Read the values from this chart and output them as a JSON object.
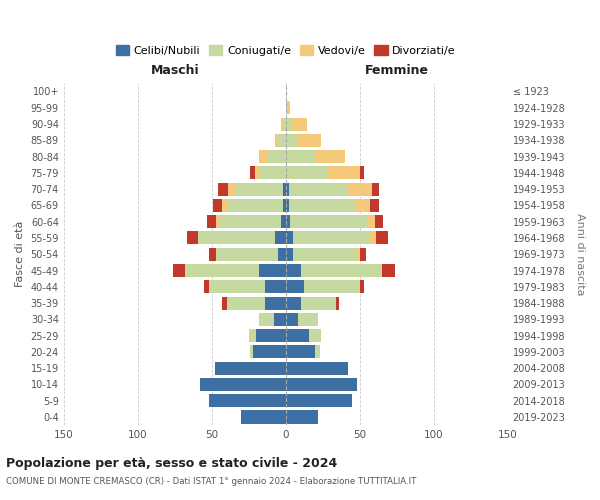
{
  "age_groups": [
    "0-4",
    "5-9",
    "10-14",
    "15-19",
    "20-24",
    "25-29",
    "30-34",
    "35-39",
    "40-44",
    "45-49",
    "50-54",
    "55-59",
    "60-64",
    "65-69",
    "70-74",
    "75-79",
    "80-84",
    "85-89",
    "90-94",
    "95-99",
    "100+"
  ],
  "birth_years": [
    "2019-2023",
    "2014-2018",
    "2009-2013",
    "2004-2008",
    "1999-2003",
    "1994-1998",
    "1989-1993",
    "1984-1988",
    "1979-1983",
    "1974-1978",
    "1969-1973",
    "1964-1968",
    "1959-1963",
    "1954-1958",
    "1949-1953",
    "1944-1948",
    "1939-1943",
    "1934-1938",
    "1929-1933",
    "1924-1928",
    "≤ 1923"
  ],
  "male_celibi": [
    30,
    52,
    58,
    48,
    22,
    20,
    8,
    14,
    14,
    18,
    5,
    7,
    3,
    2,
    2,
    0,
    0,
    0,
    0,
    0,
    0
  ],
  "male_coniugati": [
    0,
    0,
    0,
    0,
    2,
    5,
    10,
    26,
    38,
    50,
    42,
    52,
    42,
    38,
    32,
    18,
    12,
    5,
    2,
    0,
    0
  ],
  "male_vedovi": [
    0,
    0,
    0,
    0,
    0,
    0,
    0,
    0,
    0,
    0,
    0,
    0,
    2,
    3,
    5,
    3,
    6,
    2,
    1,
    0,
    0
  ],
  "male_divorziati": [
    0,
    0,
    0,
    0,
    0,
    0,
    0,
    3,
    3,
    8,
    5,
    8,
    6,
    6,
    7,
    3,
    0,
    0,
    0,
    0,
    0
  ],
  "female_nubili": [
    22,
    45,
    48,
    42,
    20,
    16,
    8,
    10,
    12,
    10,
    5,
    5,
    3,
    2,
    2,
    0,
    0,
    0,
    0,
    0,
    0
  ],
  "female_coniugate": [
    0,
    0,
    0,
    0,
    3,
    8,
    14,
    24,
    38,
    55,
    43,
    52,
    52,
    45,
    40,
    28,
    20,
    8,
    4,
    1,
    0
  ],
  "female_vedove": [
    0,
    0,
    0,
    0,
    0,
    0,
    0,
    0,
    0,
    0,
    2,
    4,
    5,
    10,
    16,
    22,
    20,
    16,
    10,
    2,
    0
  ],
  "female_divorziate": [
    0,
    0,
    0,
    0,
    0,
    0,
    0,
    2,
    3,
    9,
    4,
    8,
    6,
    6,
    5,
    3,
    0,
    0,
    0,
    0,
    0
  ],
  "colors": {
    "celibi_nubili": "#3d6fa3",
    "coniugati": "#c5d9a0",
    "vedovi": "#f5c97a",
    "divorziati": "#c0392b"
  },
  "title": "Popolazione per età, sesso e stato civile - 2024",
  "subtitle": "COMUNE DI MONTE CREMASCO (CR) - Dati ISTAT 1° gennaio 2024 - Elaborazione TUTTITALIA.IT",
  "xlabel_left": "Maschi",
  "xlabel_right": "Femmine",
  "ylabel_left": "Fasce di età",
  "ylabel_right": "Anni di nascita",
  "xlim": 150,
  "bg_color": "#ffffff",
  "grid_color": "#cccccc",
  "legend_labels": [
    "Celibi/Nubili",
    "Coniugati/e",
    "Vedovi/e",
    "Divorziati/e"
  ]
}
